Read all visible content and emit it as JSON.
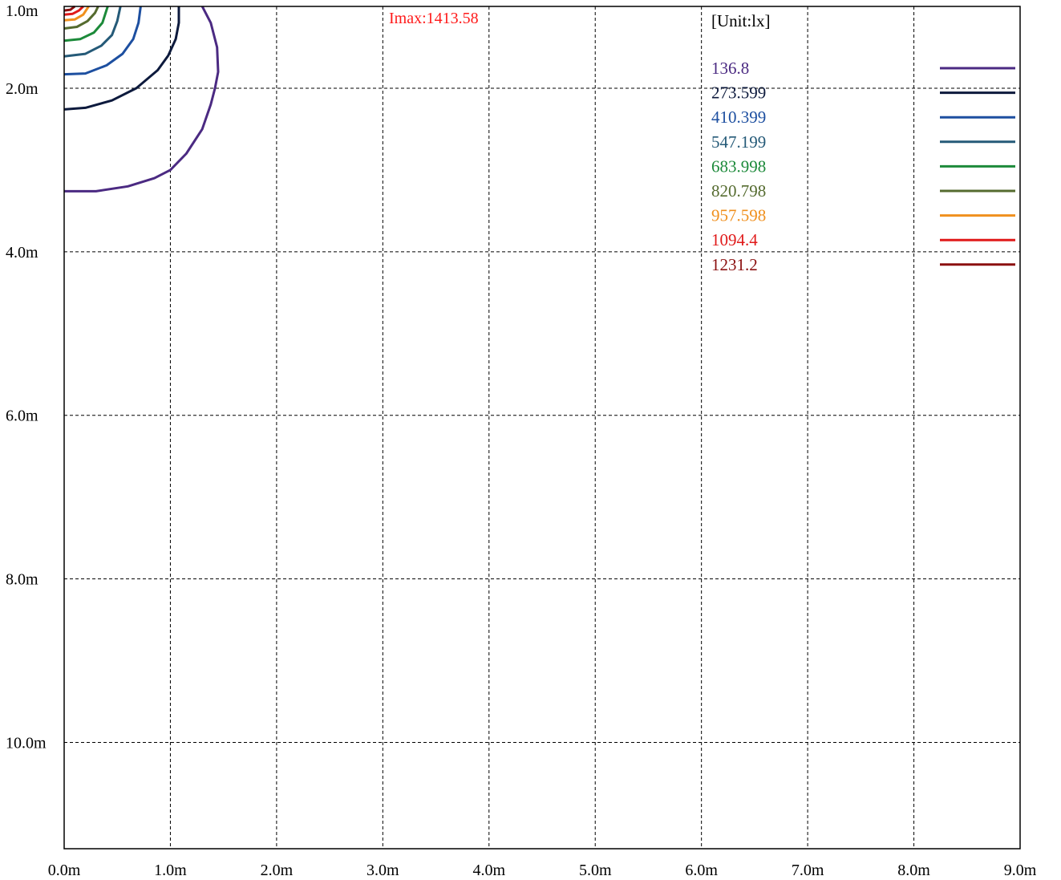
{
  "chart_data": {
    "type": "contour",
    "title": "",
    "unit_label": "[Unit:lx]",
    "max_label": "Imax:1413.58",
    "x_ticks": [
      "0.0m",
      "1.0m",
      "2.0m",
      "3.0m",
      "4.0m",
      "5.0m",
      "6.0m",
      "7.0m",
      "8.0m",
      "9.0m"
    ],
    "y_ticks": [
      "1.0m",
      "2.0m",
      "4.0m",
      "6.0m",
      "8.0m",
      "10.0m"
    ],
    "y_tick_values": [
      1.0,
      2.0,
      4.0,
      6.0,
      8.0,
      10.0
    ],
    "x_range": [
      0,
      9
    ],
    "y_range": [
      1.0,
      11.3
    ],
    "grid": true,
    "legend_position": "top-right",
    "levels": [
      {
        "label": "136.8",
        "value": 136.8,
        "color": "#4b2a82",
        "points": [
          [
            0.0,
            3.26
          ],
          [
            0.3,
            3.26
          ],
          [
            0.6,
            3.2
          ],
          [
            0.85,
            3.1
          ],
          [
            1.0,
            3.0
          ],
          [
            1.15,
            2.8
          ],
          [
            1.3,
            2.5
          ],
          [
            1.38,
            2.2
          ],
          [
            1.42,
            2.0
          ],
          [
            1.45,
            1.8
          ],
          [
            1.44,
            1.5
          ],
          [
            1.38,
            1.2
          ],
          [
            1.3,
            1.0
          ]
        ]
      },
      {
        "label": "273.599",
        "value": 273.599,
        "color": "#0d1a3d",
        "points": [
          [
            0.0,
            2.26
          ],
          [
            0.2,
            2.24
          ],
          [
            0.45,
            2.15
          ],
          [
            0.68,
            2.0
          ],
          [
            0.88,
            1.78
          ],
          [
            0.98,
            1.6
          ],
          [
            1.05,
            1.4
          ],
          [
            1.08,
            1.2
          ],
          [
            1.08,
            1.0
          ]
        ]
      },
      {
        "label": "410.399",
        "value": 410.399,
        "color": "#1d4fa0",
        "points": [
          [
            0.0,
            1.83
          ],
          [
            0.2,
            1.82
          ],
          [
            0.4,
            1.72
          ],
          [
            0.55,
            1.58
          ],
          [
            0.65,
            1.4
          ],
          [
            0.7,
            1.2
          ],
          [
            0.72,
            1.0
          ]
        ]
      },
      {
        "label": "547.199",
        "value": 547.199,
        "color": "#255a78",
        "points": [
          [
            0.0,
            1.61
          ],
          [
            0.2,
            1.58
          ],
          [
            0.35,
            1.48
          ],
          [
            0.45,
            1.35
          ],
          [
            0.5,
            1.18
          ],
          [
            0.53,
            1.0
          ]
        ]
      },
      {
        "label": "683.998",
        "value": 683.998,
        "color": "#1c8a3a",
        "points": [
          [
            0.0,
            1.42
          ],
          [
            0.15,
            1.4
          ],
          [
            0.28,
            1.32
          ],
          [
            0.36,
            1.2
          ],
          [
            0.41,
            1.0
          ]
        ]
      },
      {
        "label": "820.798",
        "value": 820.798,
        "color": "#556b2f",
        "points": [
          [
            0.0,
            1.27
          ],
          [
            0.12,
            1.25
          ],
          [
            0.22,
            1.18
          ],
          [
            0.29,
            1.08
          ],
          [
            0.32,
            1.0
          ]
        ]
      },
      {
        "label": "957.598",
        "value": 957.598,
        "color": "#f0901e",
        "points": [
          [
            0.0,
            1.17
          ],
          [
            0.1,
            1.16
          ],
          [
            0.18,
            1.1
          ],
          [
            0.23,
            1.0
          ]
        ]
      },
      {
        "label": "1094.4",
        "value": 1094.4,
        "color": "#e01a1a",
        "points": [
          [
            0.0,
            1.1
          ],
          [
            0.08,
            1.09
          ],
          [
            0.14,
            1.05
          ],
          [
            0.18,
            1.0
          ]
        ]
      },
      {
        "label": "1231.2",
        "value": 1231.2,
        "color": "#8b1010",
        "points": [
          [
            0.0,
            1.05
          ],
          [
            0.06,
            1.04
          ],
          [
            0.1,
            1.0
          ]
        ]
      }
    ]
  }
}
